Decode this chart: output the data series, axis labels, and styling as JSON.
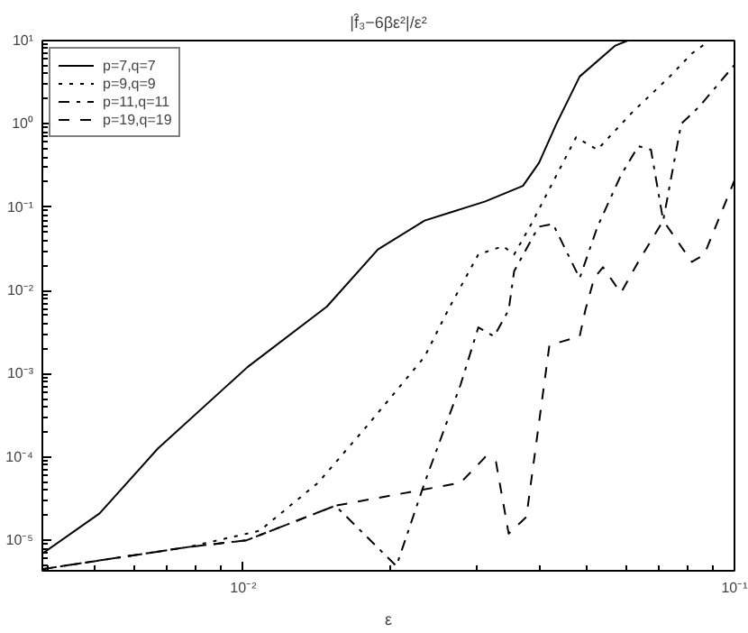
{
  "chart_data": {
    "type": "line",
    "title": "|f̂₃−6βε²|/ε²",
    "xlabel": "ε",
    "log": "xy",
    "grid": false,
    "legend": "top left",
    "xlim": [
      0.0039,
      0.1
    ],
    "ylim": [
      4.3e-06,
      10
    ],
    "xticks": [
      {
        "value": 0.01,
        "label": "10⁻²"
      },
      {
        "value": 0.1,
        "label": "10⁻¹"
      }
    ],
    "yticks": [
      {
        "value": 1e-05,
        "label": "10⁻⁵"
      },
      {
        "value": 0.0001,
        "label": "10⁻⁴"
      },
      {
        "value": 0.001,
        "label": "10⁻³"
      },
      {
        "value": 0.01,
        "label": "10⁻²"
      },
      {
        "value": 0.1,
        "label": "10⁻¹"
      },
      {
        "value": 1,
        "label": "10⁰"
      },
      {
        "value": 10,
        "label": "10¹"
      }
    ],
    "series": [
      {
        "name": "p=7,q=7",
        "color": "#000000",
        "line_style": "solid",
        "x": [
          0.0039,
          0.0051,
          0.0067,
          0.0102,
          0.0148,
          0.0188,
          0.0234,
          0.0311,
          0.0371,
          0.04,
          0.0434,
          0.0484,
          0.0572,
          0.0606
        ],
        "values": [
          6.9e-06,
          2.1e-05,
          0.000126,
          0.0012,
          0.0064,
          0.031,
          0.069,
          0.117,
          0.18,
          0.34,
          1.0,
          3.7,
          8.7,
          10
        ]
      },
      {
        "name": "p=9,q=9",
        "color": "#000000",
        "line_style": "dotted",
        "x": [
          0.0039,
          0.00773,
          0.0108,
          0.0142,
          0.0178,
          0.0234,
          0.0263,
          0.0301,
          0.0338,
          0.0356,
          0.0386,
          0.0476,
          0.0526,
          0.0621,
          0.0735,
          0.0819,
          0.089
        ],
        "values": [
          4.5e-06,
          8.3e-06,
          1.3e-05,
          4.9e-05,
          0.00023,
          0.0016,
          0.0063,
          0.027,
          0.034,
          0.027,
          0.063,
          0.69,
          0.49,
          1.4,
          3.6,
          7,
          10
        ]
      },
      {
        "name": "p=11,q=11",
        "color": "#000000",
        "line_style": "dashdot",
        "x": [
          0.0039,
          0.00773,
          0.01016,
          0.0154,
          0.0205,
          0.0234,
          0.0277,
          0.0301,
          0.0324,
          0.0347,
          0.0356,
          0.0399,
          0.0427,
          0.0484,
          0.0526,
          0.0587,
          0.0637,
          0.0676,
          0.0716,
          0.0779,
          0.0847,
          0.1
        ],
        "values": [
          4.5e-06,
          8.3e-06,
          1e-05,
          2.6e-05,
          4.9e-06,
          4.9e-05,
          0.00074,
          0.0036,
          0.0028,
          0.0058,
          0.017,
          0.058,
          0.063,
          0.014,
          0.058,
          0.24,
          0.54,
          0.49,
          0.069,
          1,
          1.6,
          5.1
        ]
      },
      {
        "name": "p=19,q=19",
        "color": "#000000",
        "line_style": "dashed",
        "x": [
          0.0039,
          0.00773,
          0.01016,
          0.0154,
          0.0277,
          0.0311,
          0.0327,
          0.0347,
          0.0377,
          0.042,
          0.0484,
          0.0497,
          0.0518,
          0.054,
          0.0587,
          0.0637,
          0.0716,
          0.0819,
          0.0868,
          0.1
        ],
        "values": [
          4.5e-06,
          8.3e-06,
          1e-05,
          2.6e-05,
          4.9e-05,
          0.0001,
          8.7e-05,
          1.2e-05,
          1.9e-05,
          0.0022,
          0.0028,
          0.0058,
          0.014,
          0.019,
          0.0093,
          0.022,
          0.069,
          0.022,
          0.027,
          0.21
        ]
      }
    ]
  }
}
